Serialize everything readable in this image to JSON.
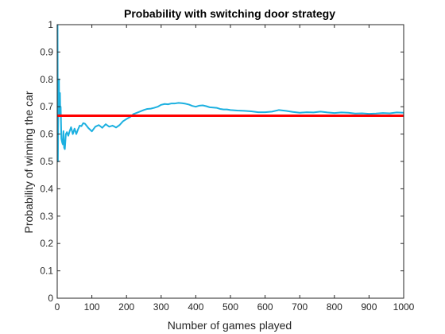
{
  "chart_data": {
    "type": "line",
    "title": "Probability with switching door strategy",
    "xlabel": "Number of games played",
    "ylabel": "Probability of winning the car",
    "xlim": [
      0,
      1000
    ],
    "ylim": [
      0,
      1
    ],
    "xticks": [
      "0",
      "100",
      "200",
      "300",
      "400",
      "500",
      "600",
      "700",
      "800",
      "900",
      "1000"
    ],
    "yticks": [
      "0",
      "0.1",
      "0.2",
      "0.3",
      "0.4",
      "0.5",
      "0.6",
      "0.7",
      "0.8",
      "0.9",
      "1"
    ],
    "grid": false,
    "series": [
      {
        "color": "#1cb0e0",
        "x": [
          1,
          2,
          3,
          4,
          5,
          6,
          7,
          8,
          9,
          10,
          12,
          14,
          16,
          18,
          20,
          22,
          25,
          28,
          32,
          36,
          40,
          45,
          50,
          55,
          60,
          65,
          70,
          75,
          80,
          90,
          100,
          110,
          120,
          130,
          140,
          150,
          160,
          170,
          180,
          190,
          200,
          210,
          220,
          230,
          240,
          250,
          260,
          270,
          280,
          290,
          300,
          310,
          320,
          330,
          340,
          350,
          360,
          370,
          380,
          390,
          400,
          410,
          420,
          430,
          440,
          450,
          460,
          470,
          480,
          490,
          500,
          520,
          540,
          560,
          580,
          600,
          620,
          640,
          660,
          680,
          700,
          720,
          740,
          760,
          780,
          800,
          820,
          840,
          860,
          880,
          900,
          920,
          940,
          960,
          980,
          1000
        ],
        "y": [
          1.0,
          0.5,
          0.667,
          0.75,
          0.8,
          0.667,
          0.714,
          0.75,
          0.667,
          0.7,
          0.583,
          0.571,
          0.5625,
          0.611,
          0.55,
          0.545,
          0.6,
          0.607,
          0.594,
          0.611,
          0.625,
          0.6,
          0.62,
          0.6,
          0.617,
          0.631,
          0.629,
          0.64,
          0.638,
          0.622,
          0.61,
          0.627,
          0.633,
          0.623,
          0.636,
          0.627,
          0.631,
          0.624,
          0.633,
          0.647,
          0.655,
          0.662,
          0.673,
          0.678,
          0.683,
          0.688,
          0.692,
          0.693,
          0.696,
          0.7,
          0.707,
          0.71,
          0.709,
          0.712,
          0.712,
          0.714,
          0.713,
          0.711,
          0.708,
          0.703,
          0.7,
          0.704,
          0.705,
          0.702,
          0.698,
          0.697,
          0.696,
          0.692,
          0.69,
          0.69,
          0.688,
          0.686,
          0.685,
          0.683,
          0.68,
          0.68,
          0.682,
          0.688,
          0.685,
          0.681,
          0.678,
          0.68,
          0.679,
          0.682,
          0.679,
          0.677,
          0.679,
          0.678,
          0.675,
          0.676,
          0.674,
          0.675,
          0.677,
          0.676,
          0.679,
          0.678
        ]
      },
      {
        "color": "#ff0000",
        "x": [
          0,
          1000
        ],
        "y": [
          0.667,
          0.667
        ]
      }
    ]
  }
}
